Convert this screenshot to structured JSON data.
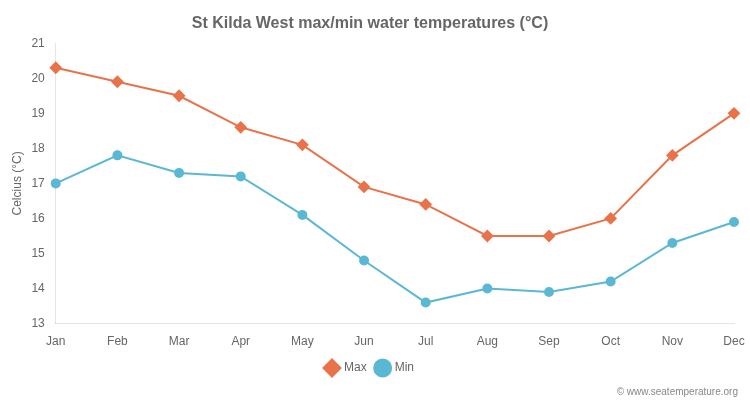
{
  "chart_data": {
    "type": "line",
    "title": "St Kilda West max/min water temperatures (°C)",
    "y_label": "Celcius (°C)",
    "categories": [
      "Jan",
      "Feb",
      "Mar",
      "Apr",
      "May",
      "Jun",
      "Jul",
      "Aug",
      "Sep",
      "Oct",
      "Nov",
      "Dec"
    ],
    "series": [
      {
        "name": "Max",
        "color": "#E8734A",
        "marker": "diamond",
        "line_style": "solid",
        "values": [
          20.3,
          19.9,
          19.5,
          18.6,
          18.1,
          16.9,
          16.4,
          15.5,
          15.5,
          16.0,
          17.8,
          19.0
        ]
      },
      {
        "name": "Min",
        "color": "#5BB8D4",
        "marker": "circle",
        "line_style": "solid",
        "values": [
          17.0,
          17.8,
          17.3,
          17.2,
          16.1,
          14.8,
          13.6,
          14.0,
          13.9,
          14.2,
          15.3,
          15.9
        ]
      }
    ],
    "ylim": [
      13,
      21
    ],
    "yticks": [
      13,
      14,
      15,
      16,
      17,
      18,
      19,
      20,
      21
    ],
    "grid": false,
    "legend": "bottom",
    "annotations": [
      "© www.seatemperature.org"
    ]
  }
}
